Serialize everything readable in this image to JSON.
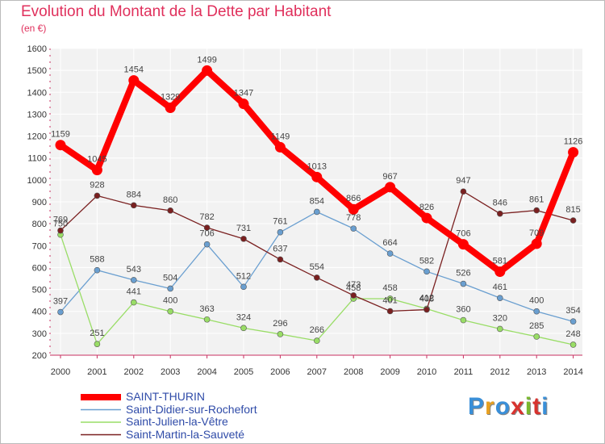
{
  "header": {
    "title": "Evolution du Montant de la Dette par Habitant",
    "subtitle": "(en €)"
  },
  "logo": {
    "text": "Proxiti",
    "letter_colors": [
      "#3a8fd8",
      "#e8a020",
      "#3a8fd8",
      "#d8332f",
      "#7ab82e",
      "#d8332f",
      "#3a8fd8"
    ]
  },
  "chart_data": {
    "type": "line",
    "title": "Evolution du Montant de la Dette par Habitant",
    "ylabel": "(en €)",
    "xlabel": "",
    "ylim": [
      200,
      1600
    ],
    "yticks": [
      "200",
      "300",
      "400",
      "500",
      "600",
      "700",
      "800",
      "900",
      "1000",
      "1100",
      "1200",
      "1300",
      "1400",
      "1500",
      "1600"
    ],
    "categories": [
      "2000",
      "2001",
      "2002",
      "2003",
      "2004",
      "2005",
      "2006",
      "2007",
      "2008",
      "2009",
      "2010",
      "2011",
      "2012",
      "2013",
      "2014"
    ],
    "grid": true,
    "legend_position": "bottom-left",
    "series": [
      {
        "name": "SAINT-THURIN",
        "color": "#ff0000",
        "values": [
          1159,
          1045,
          1454,
          1329,
          1499,
          1347,
          1149,
          1013,
          866,
          967,
          826,
          706,
          581,
          709,
          1126
        ],
        "labels": [
          "1159",
          "1045",
          "1454",
          "1329",
          "1499",
          "1347",
          "1149",
          "1013",
          "866",
          "967",
          "826",
          "706",
          "581",
          "709",
          "1126"
        ]
      },
      {
        "name": "Saint-Didier-sur-Rochefort",
        "color": "#6a9fd0",
        "values": [
          397,
          588,
          543,
          504,
          706,
          512,
          761,
          854,
          778,
          664,
          582,
          526,
          461,
          400,
          354
        ],
        "labels": [
          "397",
          "588",
          "543",
          "504",
          "706",
          "512",
          "761",
          "854",
          "778",
          "664",
          "582",
          "526",
          "461",
          "400",
          "354"
        ]
      },
      {
        "name": "Saint-Julien-la-Vêtre",
        "color": "#99dd66",
        "values": [
          750,
          251,
          441,
          400,
          363,
          324,
          296,
          266,
          458,
          458,
          412,
          360,
          320,
          285,
          248
        ],
        "labels": [
          "750",
          "251",
          "441",
          "400",
          "363",
          "324",
          "296",
          "266",
          "458",
          "458",
          "412",
          "360",
          "320",
          "285",
          "248"
        ]
      },
      {
        "name": "Saint-Martin-la-Sauveté",
        "color": "#7a2020",
        "values": [
          769,
          928,
          884,
          860,
          782,
          731,
          637,
          554,
          473,
          401,
          408,
          947,
          846,
          861,
          815
        ],
        "labels": [
          "769",
          "928",
          "884",
          "860",
          "782",
          "731",
          "637",
          "554",
          "473",
          "401",
          "408",
          "947",
          "846",
          "861",
          "815"
        ]
      }
    ]
  }
}
